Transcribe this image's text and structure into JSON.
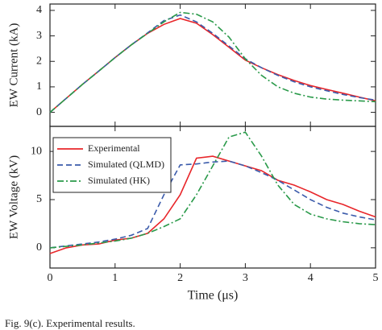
{
  "chart_data": [
    {
      "type": "line",
      "ylabel": "EW Current (kA)",
      "xlim": [
        0,
        5
      ],
      "ylim": [
        -0.55,
        4.25
      ],
      "yticks": [
        0,
        1,
        2,
        3,
        4
      ],
      "x": [
        0,
        0.25,
        0.5,
        0.75,
        1,
        1.25,
        1.5,
        1.75,
        2,
        2.25,
        2.5,
        2.75,
        3,
        3.25,
        3.5,
        3.75,
        4,
        4.25,
        4.5,
        4.75,
        5
      ],
      "series": [
        {
          "color": "#e8262a",
          "dash": "solid",
          "values": [
            0,
            0.55,
            1.1,
            1.62,
            2.15,
            2.65,
            3.1,
            3.45,
            3.68,
            3.5,
            3.05,
            2.55,
            2.05,
            1.75,
            1.48,
            1.25,
            1.05,
            0.9,
            0.75,
            0.6,
            0.45
          ]
        },
        {
          "color": "#3b5bab",
          "dash": "dashed",
          "values": [
            0,
            0.55,
            1.1,
            1.62,
            2.15,
            2.65,
            3.12,
            3.6,
            3.82,
            3.55,
            3.1,
            2.6,
            2.1,
            1.75,
            1.45,
            1.2,
            1.0,
            0.85,
            0.7,
            0.58,
            0.48
          ]
        },
        {
          "color": "#2a9a4a",
          "dash": "dashdot",
          "values": [
            0,
            0.55,
            1.1,
            1.62,
            2.15,
            2.65,
            3.1,
            3.55,
            3.92,
            3.85,
            3.55,
            2.95,
            2.1,
            1.45,
            1.0,
            0.75,
            0.6,
            0.52,
            0.48,
            0.45,
            0.42
          ]
        }
      ]
    },
    {
      "type": "line",
      "ylabel": "EW Voltage (kV)",
      "xlabel": "Time (μs)",
      "xlim": [
        0,
        5
      ],
      "xticks": [
        0,
        1,
        2,
        3,
        4,
        5
      ],
      "ylim": [
        -2.1,
        12.6
      ],
      "yticks": [
        0,
        5,
        10
      ],
      "legend": "upper left",
      "x": [
        0,
        0.25,
        0.5,
        0.75,
        1,
        1.25,
        1.5,
        1.75,
        2,
        2.25,
        2.5,
        2.75,
        3,
        3.25,
        3.5,
        3.75,
        4,
        4.25,
        4.5,
        4.75,
        5
      ],
      "series": [
        {
          "name": "Experimental",
          "color": "#e8262a",
          "dash": "solid",
          "values": [
            -0.6,
            0,
            0.3,
            0.4,
            0.8,
            1.0,
            1.5,
            3.0,
            5.5,
            9.3,
            9.5,
            9.0,
            8.5,
            8.0,
            7.0,
            6.5,
            5.8,
            5.0,
            4.5,
            3.8,
            3.2
          ]
        },
        {
          "name": "Simulated (QLMD)",
          "color": "#3b5bab",
          "dash": "dashed",
          "values": [
            0,
            0.2,
            0.4,
            0.6,
            0.9,
            1.3,
            2.0,
            5.5,
            8.6,
            8.7,
            8.9,
            9.0,
            8.5,
            7.8,
            7.0,
            6.0,
            5.0,
            4.2,
            3.6,
            3.2,
            2.9
          ]
        },
        {
          "name": "Simulated (HK)",
          "color": "#2a9a4a",
          "dash": "dashdot",
          "values": [
            0,
            0.15,
            0.3,
            0.5,
            0.7,
            1.0,
            1.5,
            2.2,
            3.0,
            5.5,
            8.5,
            11.5,
            12.0,
            9.5,
            6.5,
            4.5,
            3.5,
            3.0,
            2.7,
            2.5,
            2.4
          ]
        }
      ]
    }
  ],
  "caption": "Fig. 9(c). Experimental results."
}
